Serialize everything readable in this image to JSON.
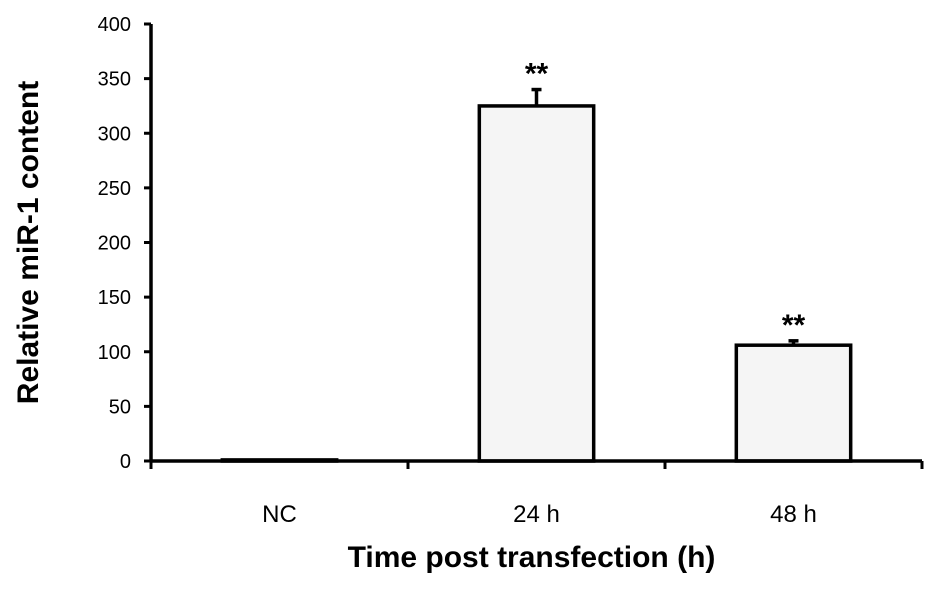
{
  "chart_data": {
    "type": "bar",
    "title": "",
    "xlabel": "Time post transfection (h)",
    "ylabel": "Relative miR-1 content",
    "categories": [
      "NC",
      "24 h",
      "48 h"
    ],
    "values": [
      1,
      325,
      106
    ],
    "errors": [
      0,
      15,
      4
    ],
    "annotations": [
      "",
      "**",
      "**"
    ],
    "ylim": [
      0,
      400
    ],
    "yticks": [
      0,
      50,
      100,
      150,
      200,
      250,
      300,
      350,
      400
    ],
    "grid": false,
    "legend": "none",
    "bar_color": "#f5f5f5",
    "edge_color": "#000000"
  }
}
